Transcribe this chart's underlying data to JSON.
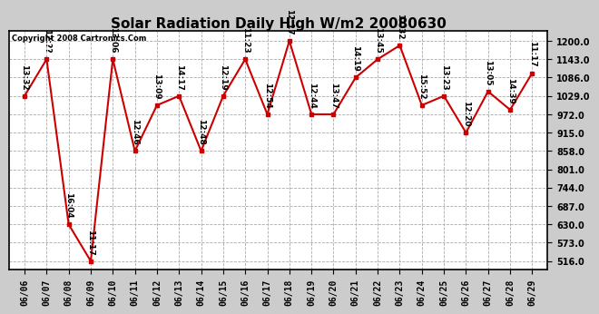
{
  "title": "Solar Radiation Daily High W/m2 20080630",
  "copyright": "Copyright 2008 Cartronics.Com",
  "dates": [
    "06/06",
    "06/07",
    "06/08",
    "06/09",
    "06/10",
    "06/11",
    "06/12",
    "06/13",
    "06/14",
    "06/15",
    "06/16",
    "06/17",
    "06/18",
    "06/19",
    "06/20",
    "06/21",
    "06/22",
    "06/23",
    "06/24",
    "06/25",
    "06/26",
    "06/27",
    "06/28",
    "06/29"
  ],
  "values": [
    1029,
    1143,
    630,
    516,
    1143,
    858,
    1000,
    1029,
    858,
    1029,
    1143,
    972,
    1200,
    972,
    972,
    1086,
    1143,
    1186,
    1000,
    1029,
    915,
    1043,
    986,
    1100
  ],
  "point_labels": [
    "13:32",
    "12:??",
    "16:04",
    "11:17",
    "13:06",
    "12:46",
    "13:09",
    "14:17",
    "12:48",
    "12:19",
    "11:23",
    "12:54",
    "12:17",
    "12:44",
    "13:47",
    "14:19",
    "13:45",
    "11:32",
    "15:52",
    "13:23",
    "12:20",
    "13:05",
    "14:39",
    "11:17"
  ],
  "yticks": [
    516.0,
    573.0,
    630.0,
    687.0,
    744.0,
    801.0,
    858.0,
    915.0,
    972.0,
    1029.0,
    1086.0,
    1143.0,
    1200.0
  ],
  "line_color": "#cc0000",
  "bg_color": "#cccccc",
  "plot_bg_color": "#ffffff",
  "grid_color": "#aaaaaa",
  "title_fontsize": 11,
  "label_fontsize": 6.5,
  "tick_fontsize": 7
}
